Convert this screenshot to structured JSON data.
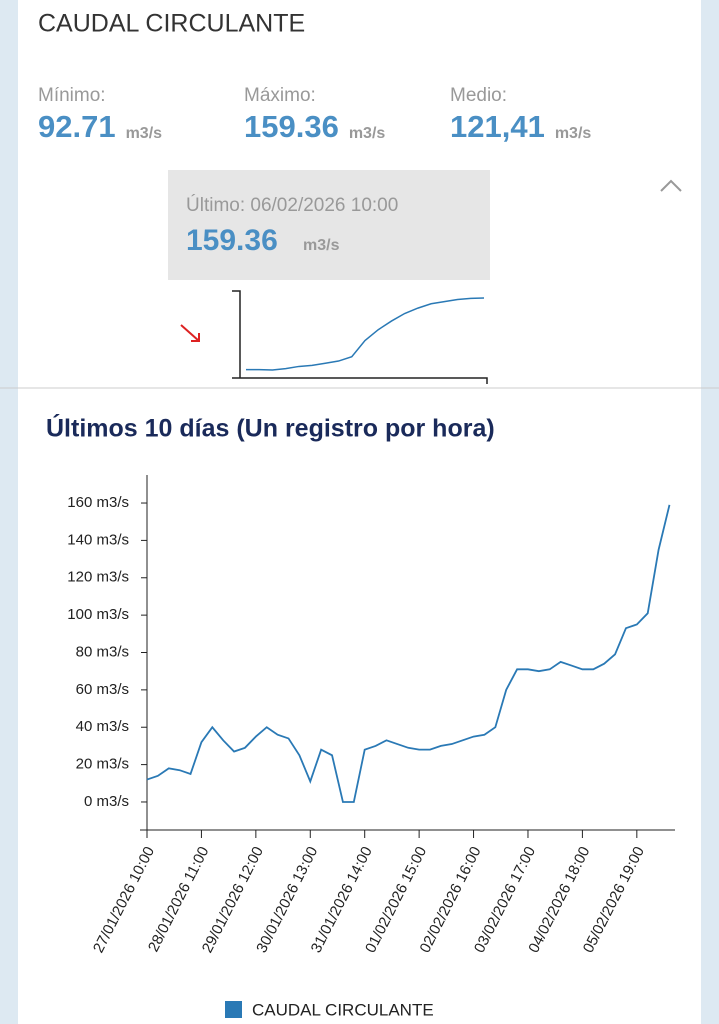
{
  "header": {
    "title": "CAUDAL CIRCULANTE"
  },
  "stats": [
    {
      "label": "Mínimo:",
      "value": "92.71",
      "unit": "m3/s"
    },
    {
      "label": "Máximo:",
      "value": "159.36",
      "unit": "m3/s"
    },
    {
      "label": "Medio:",
      "value": "121,41",
      "unit": "m3/s"
    }
  ],
  "last": {
    "label": "Último: 06/02/2026 10:00",
    "value": "159.36",
    "unit": "m3/s"
  },
  "sparkline": {
    "values": [
      93,
      93,
      92.71,
      94,
      96,
      97,
      99,
      101,
      105,
      120,
      130,
      138,
      145,
      150,
      154,
      156,
      158,
      159,
      159.36
    ]
  },
  "chart_data": {
    "type": "line",
    "title": "Últimos 10 días (Un registro por hora)",
    "categories": [
      "27/01/2026 10:00",
      null,
      null,
      null,
      null,
      "28/01/2026 11:00",
      null,
      null,
      null,
      null,
      "29/01/2026 12:00",
      null,
      null,
      null,
      null,
      "30/01/2026 13:00",
      null,
      null,
      null,
      null,
      "31/01/2026 14:00",
      null,
      null,
      null,
      null,
      "01/02/2026 15:00",
      null,
      null,
      null,
      null,
      "02/02/2026 16:00",
      null,
      null,
      null,
      null,
      "03/02/2026 17:00",
      null,
      null,
      null,
      null,
      "04/02/2026 18:00",
      null,
      null,
      null,
      null,
      "05/02/2026 19:00",
      null,
      null,
      null
    ],
    "series": [
      {
        "name": "CAUDAL CIRCULANTE",
        "color": "#2a79b5",
        "values": [
          12,
          14,
          18,
          17,
          15,
          32,
          40,
          33,
          27,
          29,
          35,
          40,
          36,
          34,
          25,
          11,
          28,
          25,
          0,
          0,
          28,
          30,
          33,
          31,
          29,
          28,
          28,
          30,
          31,
          33,
          35,
          36,
          40,
          60,
          71,
          71,
          70,
          71,
          75,
          73,
          71,
          71,
          74,
          79,
          93,
          95,
          101,
          135,
          159
        ]
      }
    ],
    "ylim": [
      -15,
      175
    ],
    "yticks": [
      {
        "value": 0,
        "label": "0 m3/s"
      },
      {
        "value": 20,
        "label": "20 m3/s"
      },
      {
        "value": 40,
        "label": "40 m3/s"
      },
      {
        "value": 60,
        "label": "60 m3/s"
      },
      {
        "value": 80,
        "label": "80 m3/s"
      },
      {
        "value": 100,
        "label": "100 m3/s"
      },
      {
        "value": 120,
        "label": "120 m3/s"
      },
      {
        "value": 140,
        "label": "140 m3/s"
      },
      {
        "value": 160,
        "label": "160 m3/s"
      }
    ],
    "legend": "bottom"
  }
}
